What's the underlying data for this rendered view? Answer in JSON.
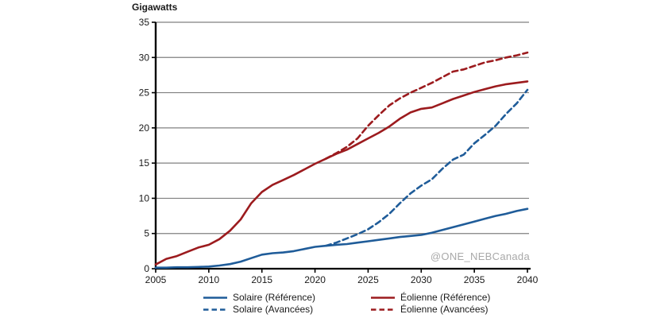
{
  "watermark": "@ONE_NEBCanada",
  "colors": {
    "solar_blue": "#1f5c99",
    "wind_red": "#9c1b1e",
    "gridline": "#808080",
    "axis": "#000000",
    "text": "#1a1a1a",
    "watermark_gray": "#a9a9a9",
    "background": "#ffffff"
  },
  "chart_data": {
    "type": "line",
    "title": "Gigawatts",
    "ylabel": "Gigawatts",
    "xlabel": "",
    "xlim": [
      2005,
      2040
    ],
    "ylim": [
      0,
      35
    ],
    "xticks": [
      2005,
      2010,
      2015,
      2020,
      2025,
      2030,
      2035,
      2040
    ],
    "yticks": [
      0,
      5,
      10,
      15,
      20,
      25,
      30,
      35
    ],
    "grid": "horizontal",
    "legend_position": "bottom",
    "x": [
      2005,
      2006,
      2007,
      2008,
      2009,
      2010,
      2011,
      2012,
      2013,
      2014,
      2015,
      2016,
      2017,
      2018,
      2019,
      2020,
      2021,
      2022,
      2023,
      2024,
      2025,
      2026,
      2027,
      2028,
      2029,
      2030,
      2031,
      2032,
      2033,
      2034,
      2035,
      2036,
      2037,
      2038,
      2039,
      2040
    ],
    "series": [
      {
        "name": "Solaire (Référence)",
        "color": "#1f5c99",
        "dash": "solid",
        "values": [
          0.15,
          0.15,
          0.2,
          0.2,
          0.25,
          0.3,
          0.45,
          0.65,
          1.0,
          1.5,
          2.0,
          2.2,
          2.3,
          2.5,
          2.8,
          3.1,
          3.25,
          3.4,
          3.5,
          3.7,
          3.9,
          4.1,
          4.3,
          4.5,
          4.65,
          4.8,
          5.1,
          5.5,
          5.9,
          6.3,
          6.7,
          7.1,
          7.5,
          7.8,
          8.2,
          8.5
        ]
      },
      {
        "name": "Solaire (Avancées)",
        "color": "#1f5c99",
        "dash": "dashed",
        "values": [
          null,
          null,
          null,
          null,
          null,
          null,
          null,
          null,
          null,
          null,
          null,
          null,
          null,
          null,
          null,
          null,
          3.25,
          3.7,
          4.3,
          4.9,
          5.6,
          6.6,
          7.8,
          9.3,
          10.7,
          11.8,
          12.7,
          14.2,
          15.5,
          16.2,
          17.8,
          19.0,
          20.3,
          22.0,
          23.5,
          25.4
        ]
      },
      {
        "name": "Éolienne (Référence)",
        "color": "#9c1b1e",
        "dash": "solid",
        "values": [
          0.6,
          1.4,
          1.8,
          2.4,
          3.0,
          3.4,
          4.2,
          5.4,
          7.0,
          9.3,
          10.9,
          11.9,
          12.6,
          13.3,
          14.1,
          14.9,
          15.6,
          16.3,
          16.9,
          17.7,
          18.5,
          19.3,
          20.2,
          21.3,
          22.2,
          22.7,
          22.9,
          23.5,
          24.1,
          24.6,
          25.1,
          25.5,
          25.9,
          26.2,
          26.4,
          26.6
        ]
      },
      {
        "name": "Éolienne (Avancées)",
        "color": "#9c1b1e",
        "dash": "dashed",
        "values": [
          null,
          null,
          null,
          null,
          null,
          null,
          null,
          null,
          null,
          null,
          null,
          null,
          null,
          null,
          null,
          null,
          15.6,
          16.4,
          17.3,
          18.5,
          20.3,
          21.8,
          23.2,
          24.2,
          25.0,
          25.7,
          26.4,
          27.2,
          28.0,
          28.3,
          28.8,
          29.3,
          29.6,
          30.0,
          30.3,
          30.7
        ]
      }
    ]
  },
  "legend": {
    "items": [
      {
        "label": "Solaire (Référence)"
      },
      {
        "label": "Solaire (Avancées)"
      },
      {
        "label": "Éolienne (Référence)"
      },
      {
        "label": "Éolienne (Avancées)"
      }
    ]
  }
}
